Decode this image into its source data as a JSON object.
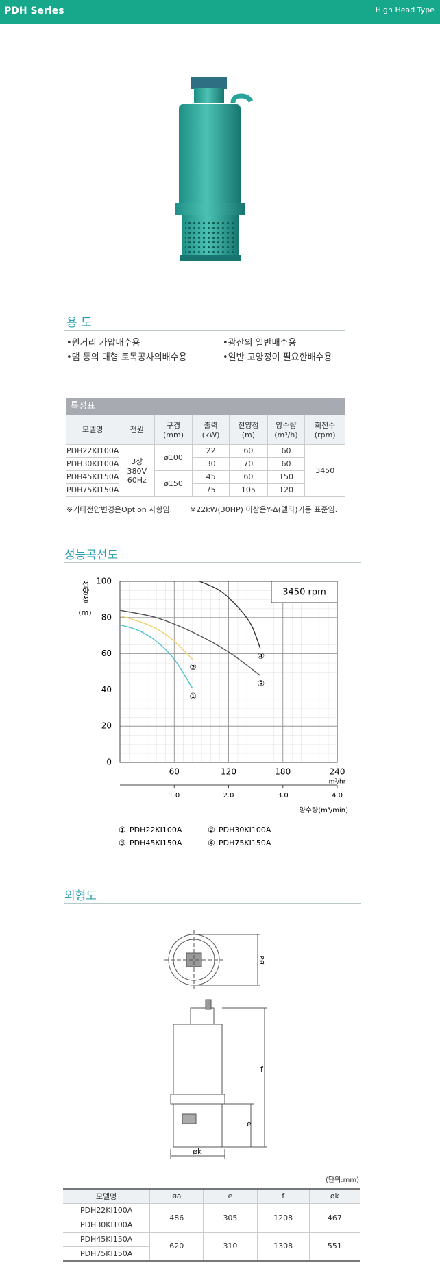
{
  "header": {
    "series": "PDH Series",
    "type": "High Head Type"
  },
  "uses": {
    "title": "용 도",
    "items": [
      "•원거리 가압배수용",
      "•광산의 일반배수용",
      "•댐 등의 대형 토목공사의배수용",
      "•일반 고양정이 필요한배수용"
    ]
  },
  "spec_table": {
    "title": "특성표",
    "headers": [
      "모델명",
      "전원",
      "구경\n(mm)",
      "출력\n(kW)",
      "전양정\n(m)",
      "양수량\n(m³/h)",
      "회전수\n(rpm)"
    ],
    "rows": [
      [
        "PDH22KI100A",
        "3상\n380V\n60Hz",
        "ø100",
        22,
        60,
        60,
        3450
      ],
      [
        "PDH30KI100A",
        30,
        70,
        60
      ],
      [
        "PDH45KI150A",
        "ø150",
        45,
        60,
        150
      ],
      [
        "PDH75KI150A",
        75,
        105,
        120
      ]
    ]
  },
  "notes": [
    "※기타전압변경은Option 사항임.",
    "※22kW(30HP) 이상은Y-Δ(델타)기동 표준임."
  ],
  "chart_data": {
    "type": "line",
    "title": "성능곡선도",
    "annotation": "3450 rpm",
    "y_label": "전양정",
    "y_unit": "(m)",
    "x_label": "m³/hr",
    "x2_label": "양수량(m³/min)",
    "xlim": [
      0,
      240
    ],
    "xticks": [
      60,
      120,
      180,
      240
    ],
    "x2lim": [
      0,
      4
    ],
    "x2ticks": [
      {
        "value": 1,
        "label": "1.0"
      },
      {
        "value": 2,
        "label": "2.0"
      },
      {
        "value": 3,
        "label": "3.0"
      },
      {
        "value": 4,
        "label": "4.0"
      }
    ],
    "ylim": [
      0,
      100
    ],
    "yticks": [
      0,
      20,
      40,
      60,
      80,
      100
    ],
    "grid": true,
    "series": [
      {
        "name": "PDH22KI100A",
        "label": "①",
        "color": "#4cc0cf",
        "x": [
          0,
          20,
          40,
          60,
          80
        ],
        "values": [
          76,
          73,
          67,
          57,
          41
        ]
      },
      {
        "name": "PDH30KI100A",
        "label": "②",
        "color": "#f0cf6a",
        "x": [
          0,
          20,
          40,
          60,
          80
        ],
        "values": [
          81,
          78,
          74,
          67,
          57
        ]
      },
      {
        "name": "PDH45KI150A",
        "label": "③",
        "color": "#555555",
        "x": [
          0,
          40,
          80,
          120,
          155
        ],
        "values": [
          84,
          80,
          72,
          61,
          48
        ]
      },
      {
        "name": "PDH75KI150A",
        "label": "④",
        "color": "#333333",
        "x": [
          88,
          110,
          130,
          145,
          155
        ],
        "values": [
          100,
          95,
          86,
          76,
          63
        ]
      }
    ]
  },
  "outline": {
    "title": "외형도",
    "labels": {
      "a": "øa",
      "f": "f",
      "e": "e",
      "k": "øk"
    }
  },
  "dim_table": {
    "unit": "(단위:mm)",
    "headers": [
      "모델명",
      "øa",
      "e",
      "f",
      "øk"
    ],
    "rows": [
      [
        "PDH22KI100A",
        486,
        305,
        1208,
        467
      ],
      [
        "PDH30KI100A"
      ],
      [
        "PDH45KI150A",
        620,
        310,
        1308,
        551
      ],
      [
        "PDH75KI150A"
      ]
    ]
  }
}
